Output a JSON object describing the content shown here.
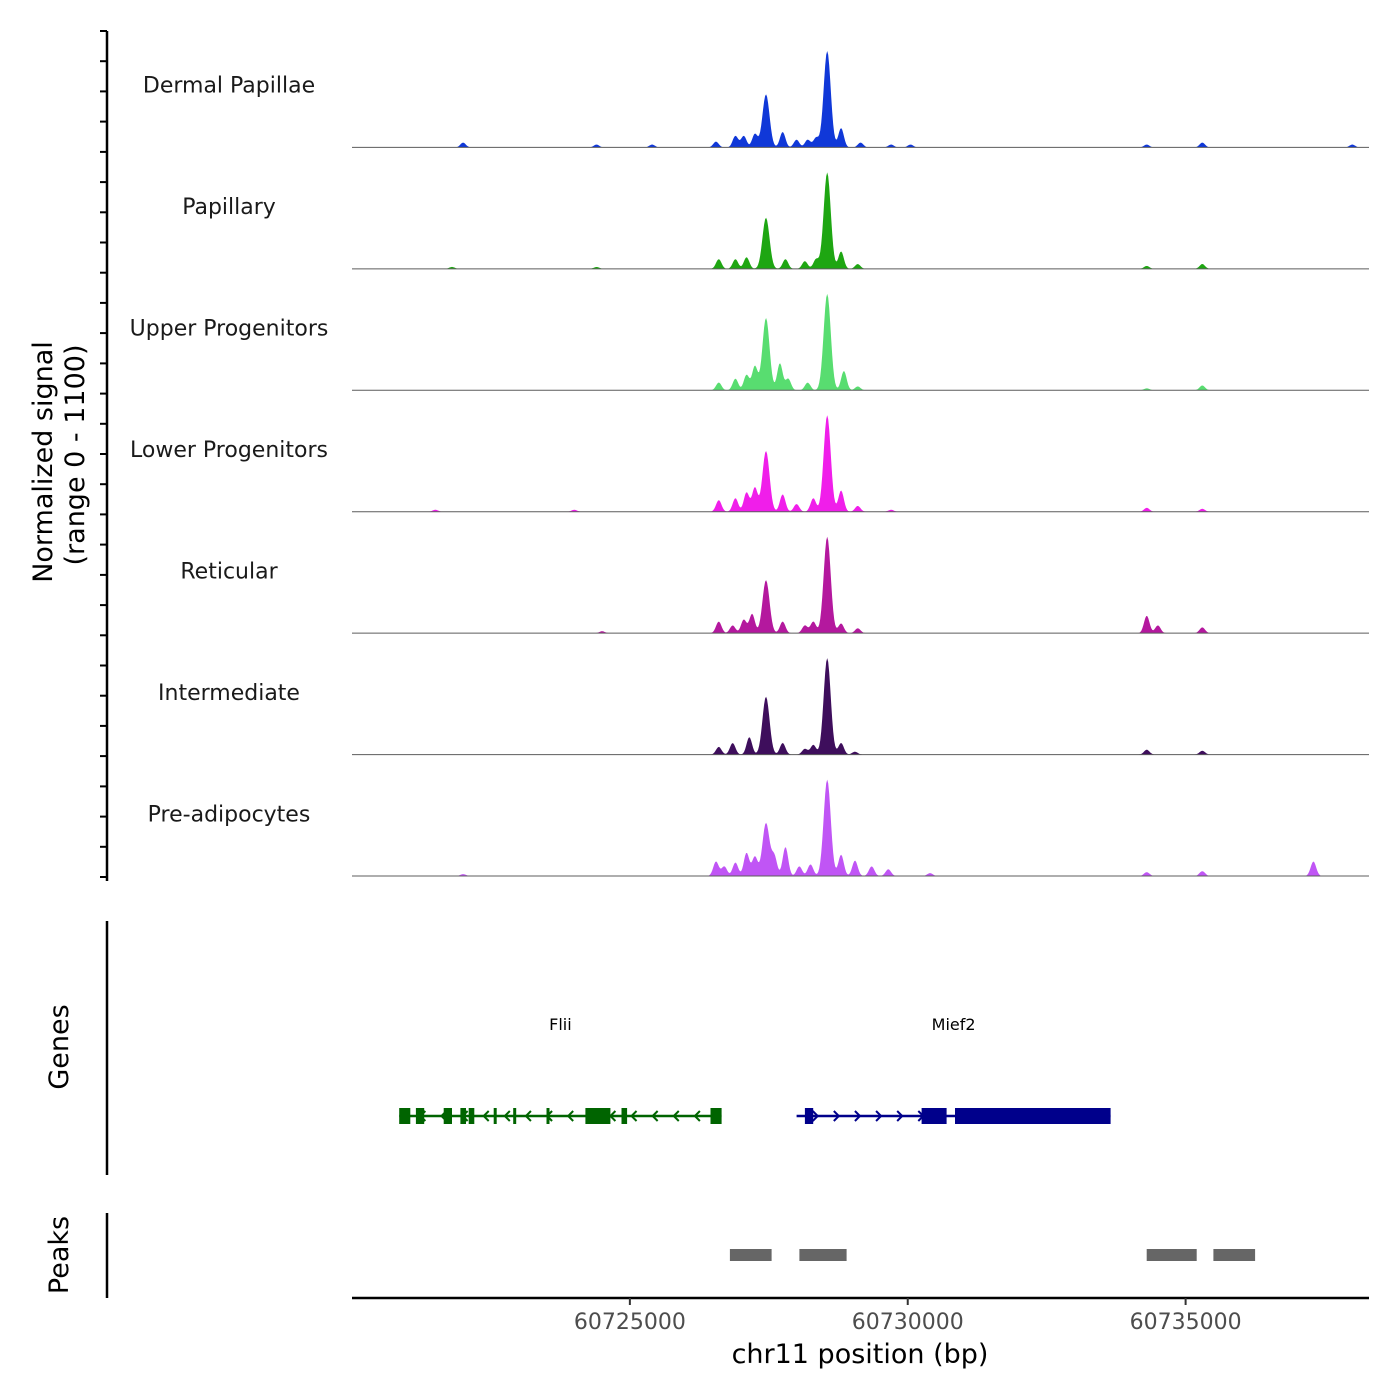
{
  "chart_data": {
    "type": "area",
    "title": "",
    "chromosome": "chr11",
    "xlabel": "chr11 position (bp)",
    "ylabel_line1": "Normalized signal",
    "ylabel_line2": "(range 0 - 1100)",
    "xlim": [
      60720000,
      60738300
    ],
    "ylim": [
      0,
      1100
    ],
    "x_ticks": [
      60725000,
      60730000,
      60735000
    ],
    "x_tick_labels": [
      "60725000",
      "60730000",
      "60735000"
    ],
    "genes_label": "Genes",
    "peaks_label": "Peaks",
    "tracks": [
      {
        "name": "Dermal Papillae",
        "color": "#1038d8",
        "peaks": [
          [
            60722000,
            0.05
          ],
          [
            60724400,
            0.03
          ],
          [
            60725400,
            0.03
          ],
          [
            60726550,
            0.06
          ],
          [
            60726900,
            0.12
          ],
          [
            60727050,
            0.12
          ],
          [
            60727250,
            0.14
          ],
          [
            60727450,
            0.55
          ],
          [
            60727750,
            0.16
          ],
          [
            60728000,
            0.08
          ],
          [
            60728200,
            0.08
          ],
          [
            60728350,
            0.1
          ],
          [
            60728550,
            1.0
          ],
          [
            60728800,
            0.2
          ],
          [
            60729150,
            0.05
          ],
          [
            60729700,
            0.03
          ],
          [
            60730050,
            0.03
          ],
          [
            60734300,
            0.03
          ],
          [
            60735300,
            0.05
          ],
          [
            60738000,
            0.03
          ]
        ]
      },
      {
        "name": "Papillary",
        "color": "#1ea612",
        "peaks": [
          [
            60721800,
            0.02
          ],
          [
            60724400,
            0.02
          ],
          [
            60726600,
            0.1
          ],
          [
            60726900,
            0.1
          ],
          [
            60727100,
            0.12
          ],
          [
            60727450,
            0.53
          ],
          [
            60727800,
            0.1
          ],
          [
            60728150,
            0.08
          ],
          [
            60728350,
            0.1
          ],
          [
            60728550,
            1.0
          ],
          [
            60728800,
            0.18
          ],
          [
            60729100,
            0.05
          ],
          [
            60734300,
            0.03
          ],
          [
            60735300,
            0.05
          ]
        ]
      },
      {
        "name": "Upper Progenitors",
        "color": "#58dd70",
        "peaks": [
          [
            60726600,
            0.08
          ],
          [
            60726900,
            0.12
          ],
          [
            60727100,
            0.16
          ],
          [
            60727250,
            0.25
          ],
          [
            60727450,
            0.75
          ],
          [
            60727700,
            0.28
          ],
          [
            60727850,
            0.12
          ],
          [
            60728200,
            0.08
          ],
          [
            60728550,
            1.0
          ],
          [
            60728850,
            0.2
          ],
          [
            60729100,
            0.04
          ],
          [
            60734300,
            0.02
          ],
          [
            60735300,
            0.05
          ]
        ]
      },
      {
        "name": "Lower Progenitors",
        "color": "#f01eea",
        "peaks": [
          [
            60721500,
            0.02
          ],
          [
            60724000,
            0.02
          ],
          [
            60726600,
            0.12
          ],
          [
            60726900,
            0.14
          ],
          [
            60727100,
            0.2
          ],
          [
            60727250,
            0.25
          ],
          [
            60727450,
            0.63
          ],
          [
            60727750,
            0.18
          ],
          [
            60728000,
            0.08
          ],
          [
            60728300,
            0.14
          ],
          [
            60728550,
            1.0
          ],
          [
            60728800,
            0.22
          ],
          [
            60729100,
            0.06
          ],
          [
            60729700,
            0.02
          ],
          [
            60734300,
            0.04
          ],
          [
            60735300,
            0.03
          ]
        ]
      },
      {
        "name": "Reticular",
        "color": "#b4189e",
        "peaks": [
          [
            60724500,
            0.02
          ],
          [
            60726600,
            0.12
          ],
          [
            60726850,
            0.08
          ],
          [
            60727050,
            0.14
          ],
          [
            60727200,
            0.2
          ],
          [
            60727450,
            0.55
          ],
          [
            60727750,
            0.12
          ],
          [
            60728150,
            0.08
          ],
          [
            60728300,
            0.12
          ],
          [
            60728550,
            1.0
          ],
          [
            60728800,
            0.1
          ],
          [
            60729100,
            0.05
          ],
          [
            60734300,
            0.18
          ],
          [
            60734500,
            0.08
          ],
          [
            60735300,
            0.06
          ]
        ]
      },
      {
        "name": "Intermediate",
        "color": "#3e0e5c",
        "peaks": [
          [
            60726600,
            0.08
          ],
          [
            60726850,
            0.12
          ],
          [
            60727150,
            0.18
          ],
          [
            60727450,
            0.6
          ],
          [
            60727750,
            0.12
          ],
          [
            60728150,
            0.06
          ],
          [
            60728300,
            0.1
          ],
          [
            60728550,
            1.0
          ],
          [
            60728800,
            0.12
          ],
          [
            60729050,
            0.03
          ],
          [
            60734300,
            0.05
          ],
          [
            60735300,
            0.04
          ]
        ]
      },
      {
        "name": "Pre-adipocytes",
        "color": "#c055f5",
        "peaks": [
          [
            60722000,
            0.02
          ],
          [
            60726550,
            0.15
          ],
          [
            60726700,
            0.1
          ],
          [
            60726900,
            0.14
          ],
          [
            60727100,
            0.24
          ],
          [
            60727250,
            0.2
          ],
          [
            60727450,
            0.55
          ],
          [
            60727600,
            0.2
          ],
          [
            60727800,
            0.3
          ],
          [
            60728050,
            0.1
          ],
          [
            60728250,
            0.12
          ],
          [
            60728550,
            1.0
          ],
          [
            60728800,
            0.22
          ],
          [
            60729050,
            0.16
          ],
          [
            60729350,
            0.1
          ],
          [
            60729650,
            0.07
          ],
          [
            60730400,
            0.03
          ],
          [
            60734300,
            0.04
          ],
          [
            60735300,
            0.05
          ],
          [
            60737300,
            0.15
          ]
        ]
      }
    ],
    "genes": [
      {
        "name": "Flii",
        "strand": "-",
        "color": "#006400",
        "start": 60720850,
        "end": 60726650,
        "exons": [
          [
            60720850,
            60721050
          ],
          [
            60721150,
            60721300
          ],
          [
            60721650,
            60721800
          ],
          [
            60721950,
            60722050
          ],
          [
            60722100,
            60722200
          ],
          [
            60722550,
            60722600
          ],
          [
            60722900,
            60722950
          ],
          [
            60723500,
            60723550
          ],
          [
            60724200,
            60724650
          ],
          [
            60724850,
            60724950
          ],
          [
            60726450,
            60726650
          ]
        ]
      },
      {
        "name": "Mief2",
        "strand": "+",
        "color": "#00008b",
        "start": 60728000,
        "end": 60733650,
        "exons": [
          [
            60728150,
            60728300
          ],
          [
            60730250,
            60730700
          ],
          [
            60730850,
            60733650
          ]
        ]
      }
    ],
    "peak_regions": [
      [
        60726800,
        60727550
      ],
      [
        60728050,
        60728900
      ],
      [
        60734300,
        60735200
      ],
      [
        60735500,
        60736250
      ]
    ]
  }
}
